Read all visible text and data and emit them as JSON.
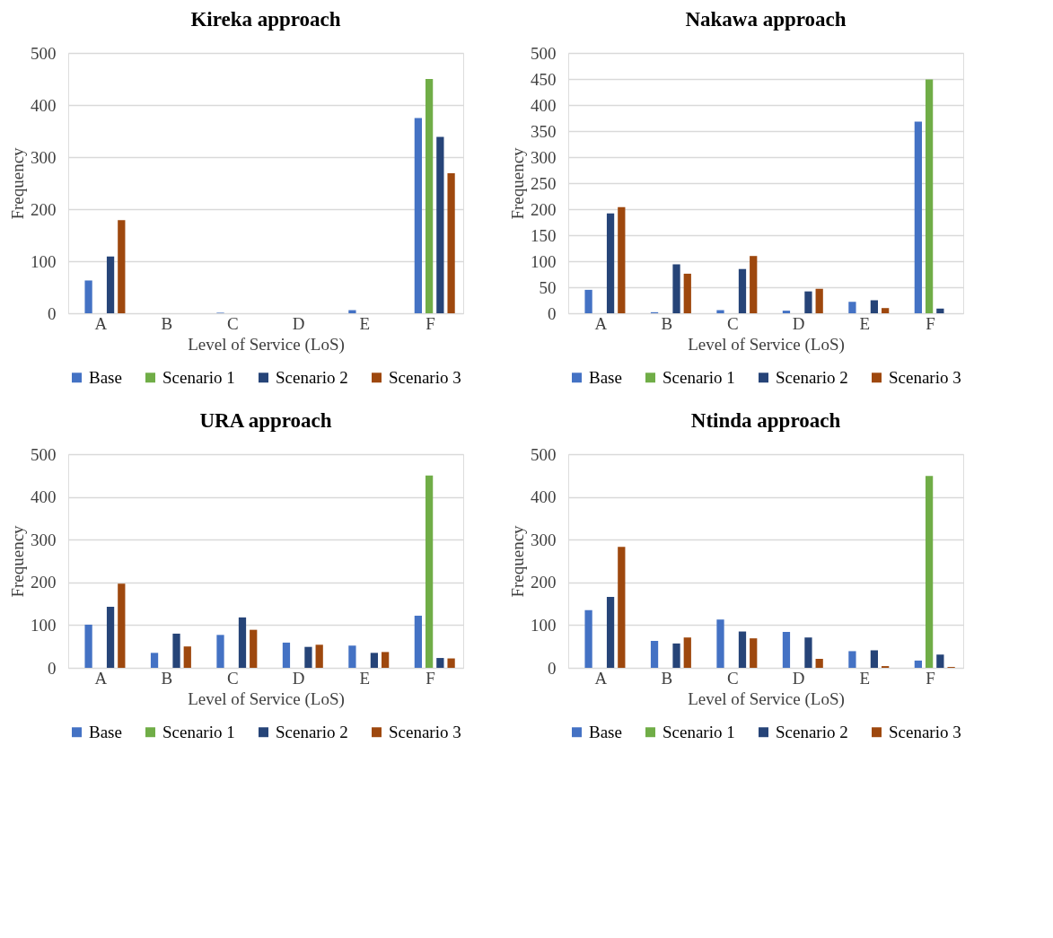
{
  "chart_data": [
    {
      "type": "bar",
      "title": "Kireka approach",
      "xlabel": "Level of Service (LoS)",
      "ylabel": "Frequency",
      "categories": [
        "A",
        "B",
        "C",
        "D",
        "E",
        "F"
      ],
      "ylim": [
        0,
        500
      ],
      "yticks": [
        0,
        100,
        200,
        300,
        400,
        500
      ],
      "grid": "y",
      "legend": "bottom",
      "series": [
        {
          "name": "Base",
          "color": "#4472c4",
          "values": [
            63,
            0,
            1,
            0,
            6,
            375
          ]
        },
        {
          "name": "Scenario 1",
          "color": "#70ad47",
          "values": [
            0,
            0,
            0,
            0,
            0,
            450
          ]
        },
        {
          "name": "Scenario 2",
          "color": "#264478",
          "values": [
            109,
            0,
            0,
            0,
            0,
            339
          ]
        },
        {
          "name": "Scenario 3",
          "color": "#9e480e",
          "values": [
            179,
            0,
            0,
            0,
            0,
            269
          ]
        }
      ]
    },
    {
      "type": "bar",
      "title": "Nakawa approach",
      "xlabel": "Level of Service (LoS)",
      "ylabel": "Frequency",
      "categories": [
        "A",
        "B",
        "C",
        "D",
        "E",
        "F"
      ],
      "ylim": [
        0,
        500
      ],
      "yticks": [
        0,
        50,
        100,
        150,
        200,
        250,
        300,
        350,
        400,
        450,
        500
      ],
      "grid": "y",
      "legend": "bottom",
      "series": [
        {
          "name": "Base",
          "color": "#4472c4",
          "values": [
            45,
            2,
            6,
            5,
            22,
            368
          ]
        },
        {
          "name": "Scenario 1",
          "color": "#70ad47",
          "values": [
            0,
            0,
            0,
            0,
            0,
            449
          ]
        },
        {
          "name": "Scenario 2",
          "color": "#264478",
          "values": [
            192,
            94,
            85,
            42,
            25,
            9
          ]
        },
        {
          "name": "Scenario 3",
          "color": "#9e480e",
          "values": [
            204,
            76,
            110,
            47,
            10,
            0
          ]
        }
      ]
    },
    {
      "type": "bar",
      "title": "URA approach",
      "xlabel": "Level of Service (LoS)",
      "ylabel": "Frequency",
      "categories": [
        "A",
        "B",
        "C",
        "D",
        "E",
        "F"
      ],
      "ylim": [
        0,
        500
      ],
      "yticks": [
        0,
        100,
        200,
        300,
        400,
        500
      ],
      "grid": "y",
      "legend": "bottom",
      "series": [
        {
          "name": "Base",
          "color": "#4472c4",
          "values": [
            101,
            35,
            77,
            59,
            52,
            122
          ]
        },
        {
          "name": "Scenario 1",
          "color": "#70ad47",
          "values": [
            0,
            0,
            0,
            0,
            0,
            450
          ]
        },
        {
          "name": "Scenario 2",
          "color": "#264478",
          "values": [
            143,
            80,
            118,
            49,
            35,
            23
          ]
        },
        {
          "name": "Scenario 3",
          "color": "#9e480e",
          "values": [
            197,
            50,
            89,
            54,
            37,
            22
          ]
        }
      ]
    },
    {
      "type": "bar",
      "title": "Ntinda approach",
      "xlabel": "Level of Service (LoS)",
      "ylabel": "Frequency",
      "categories": [
        "A",
        "B",
        "C",
        "D",
        "E",
        "F"
      ],
      "ylim": [
        0,
        500
      ],
      "yticks": [
        0,
        100,
        200,
        300,
        400,
        500
      ],
      "grid": "y",
      "legend": "bottom",
      "series": [
        {
          "name": "Base",
          "color": "#4472c4",
          "values": [
            135,
            63,
            113,
            84,
            39,
            17
          ]
        },
        {
          "name": "Scenario 1",
          "color": "#70ad47",
          "values": [
            0,
            0,
            0,
            0,
            0,
            449
          ]
        },
        {
          "name": "Scenario 2",
          "color": "#264478",
          "values": [
            166,
            57,
            85,
            71,
            41,
            31
          ]
        },
        {
          "name": "Scenario 3",
          "color": "#9e480e",
          "values": [
            283,
            71,
            69,
            21,
            4,
            2
          ]
        }
      ]
    }
  ]
}
